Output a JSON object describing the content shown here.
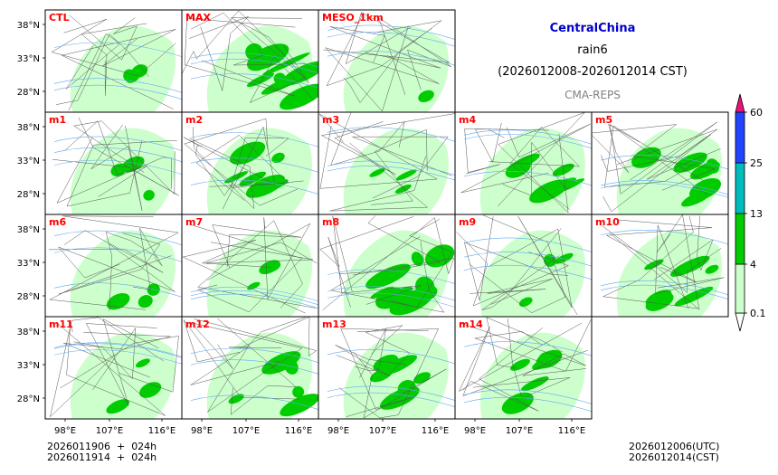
{
  "header": {
    "region": "CentralChina",
    "variable": "rain6",
    "period": "(2026012008-2026012014 CST)",
    "model": "CMA-REPS"
  },
  "footer": {
    "init_line1": "2026011906  +  024h",
    "init_line2": "2026011914  +  024h",
    "valid_line1": "2026012006(UTC)",
    "valid_line2": "2026012014(CST)"
  },
  "chart_data": {
    "type": "heatmap",
    "title": "CentralChina rain6 (2026012008-2026012014 CST)",
    "panels": [
      {
        "name": "CTL",
        "row": 0,
        "col": 0,
        "intensity": 1
      },
      {
        "name": "MAX",
        "row": 0,
        "col": 1,
        "intensity": 3
      },
      {
        "name": "MESO_1km",
        "row": 0,
        "col": 2,
        "intensity": 0
      },
      {
        "name": "m1",
        "row": 1,
        "col": 0,
        "intensity": 1
      },
      {
        "name": "m2",
        "row": 1,
        "col": 1,
        "intensity": 2
      },
      {
        "name": "m3",
        "row": 1,
        "col": 2,
        "intensity": 1
      },
      {
        "name": "m4",
        "row": 1,
        "col": 3,
        "intensity": 2
      },
      {
        "name": "m5",
        "row": 1,
        "col": 4,
        "intensity": 2
      },
      {
        "name": "m6",
        "row": 2,
        "col": 0,
        "intensity": 1
      },
      {
        "name": "m7",
        "row": 2,
        "col": 1,
        "intensity": 1
      },
      {
        "name": "m8",
        "row": 2,
        "col": 2,
        "intensity": 3
      },
      {
        "name": "m9",
        "row": 2,
        "col": 3,
        "intensity": 1
      },
      {
        "name": "m10",
        "row": 2,
        "col": 4,
        "intensity": 2
      },
      {
        "name": "m11",
        "row": 3,
        "col": 0,
        "intensity": 1
      },
      {
        "name": "m12",
        "row": 3,
        "col": 1,
        "intensity": 2
      },
      {
        "name": "m13",
        "row": 3,
        "col": 2,
        "intensity": 2
      },
      {
        "name": "m14",
        "row": 3,
        "col": 3,
        "intensity": 2
      }
    ],
    "lat_ticks": [
      "38°N",
      "33°N",
      "28°N"
    ],
    "lon_ticks": [
      "98°E",
      "107°E",
      "116°E"
    ],
    "colorbar": {
      "levels": [
        "0.1",
        "4",
        "13",
        "25",
        "60"
      ],
      "colors": [
        "#ccffcc",
        "#00cc00",
        "#00bbbb",
        "#2244ff",
        "#ee1177"
      ]
    }
  }
}
